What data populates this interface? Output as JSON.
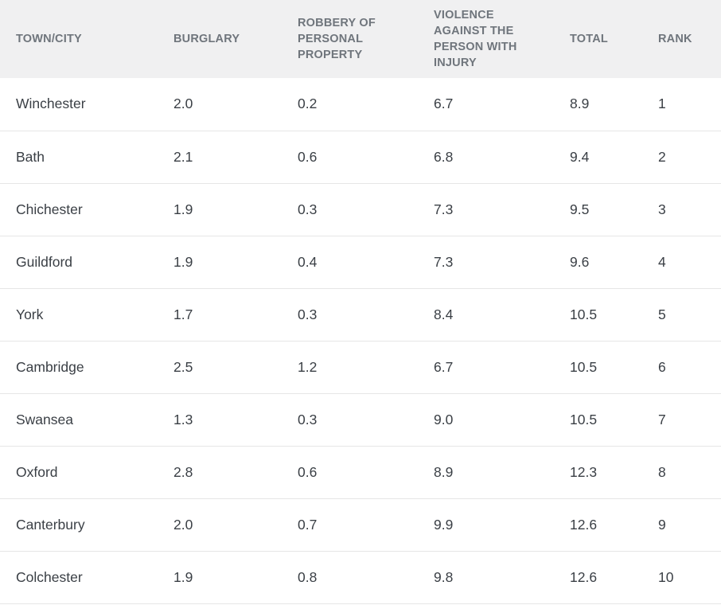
{
  "table": {
    "headers": [
      "TOWN/CITY",
      "BURGLARY",
      "ROBBERY OF PERSONAL PROPERTY",
      "VIOLENCE AGAINST THE PERSON WITH INJURY",
      "TOTAL",
      "RANK"
    ],
    "rows": [
      [
        "Winchester",
        "2.0",
        "0.2",
        "6.7",
        "8.9",
        "1"
      ],
      [
        "Bath",
        "2.1",
        "0.6",
        "6.8",
        "9.4",
        "2"
      ],
      [
        "Chichester",
        "1.9",
        "0.3",
        "7.3",
        "9.5",
        "3"
      ],
      [
        "Guildford",
        "1.9",
        "0.4",
        "7.3",
        "9.6",
        "4"
      ],
      [
        "York",
        "1.7",
        "0.3",
        "8.4",
        "10.5",
        "5"
      ],
      [
        "Cambridge",
        "2.5",
        "1.2",
        "6.7",
        "10.5",
        "6"
      ],
      [
        "Swansea",
        "1.3",
        "0.3",
        "9.0",
        "10.5",
        "7"
      ],
      [
        "Oxford",
        "2.8",
        "0.6",
        "8.9",
        "12.3",
        "8"
      ],
      [
        "Canterbury",
        "2.0",
        "0.7",
        "9.9",
        "12.6",
        "9"
      ],
      [
        "Colchester",
        "1.9",
        "0.8",
        "9.8",
        "12.6",
        "10"
      ]
    ]
  }
}
